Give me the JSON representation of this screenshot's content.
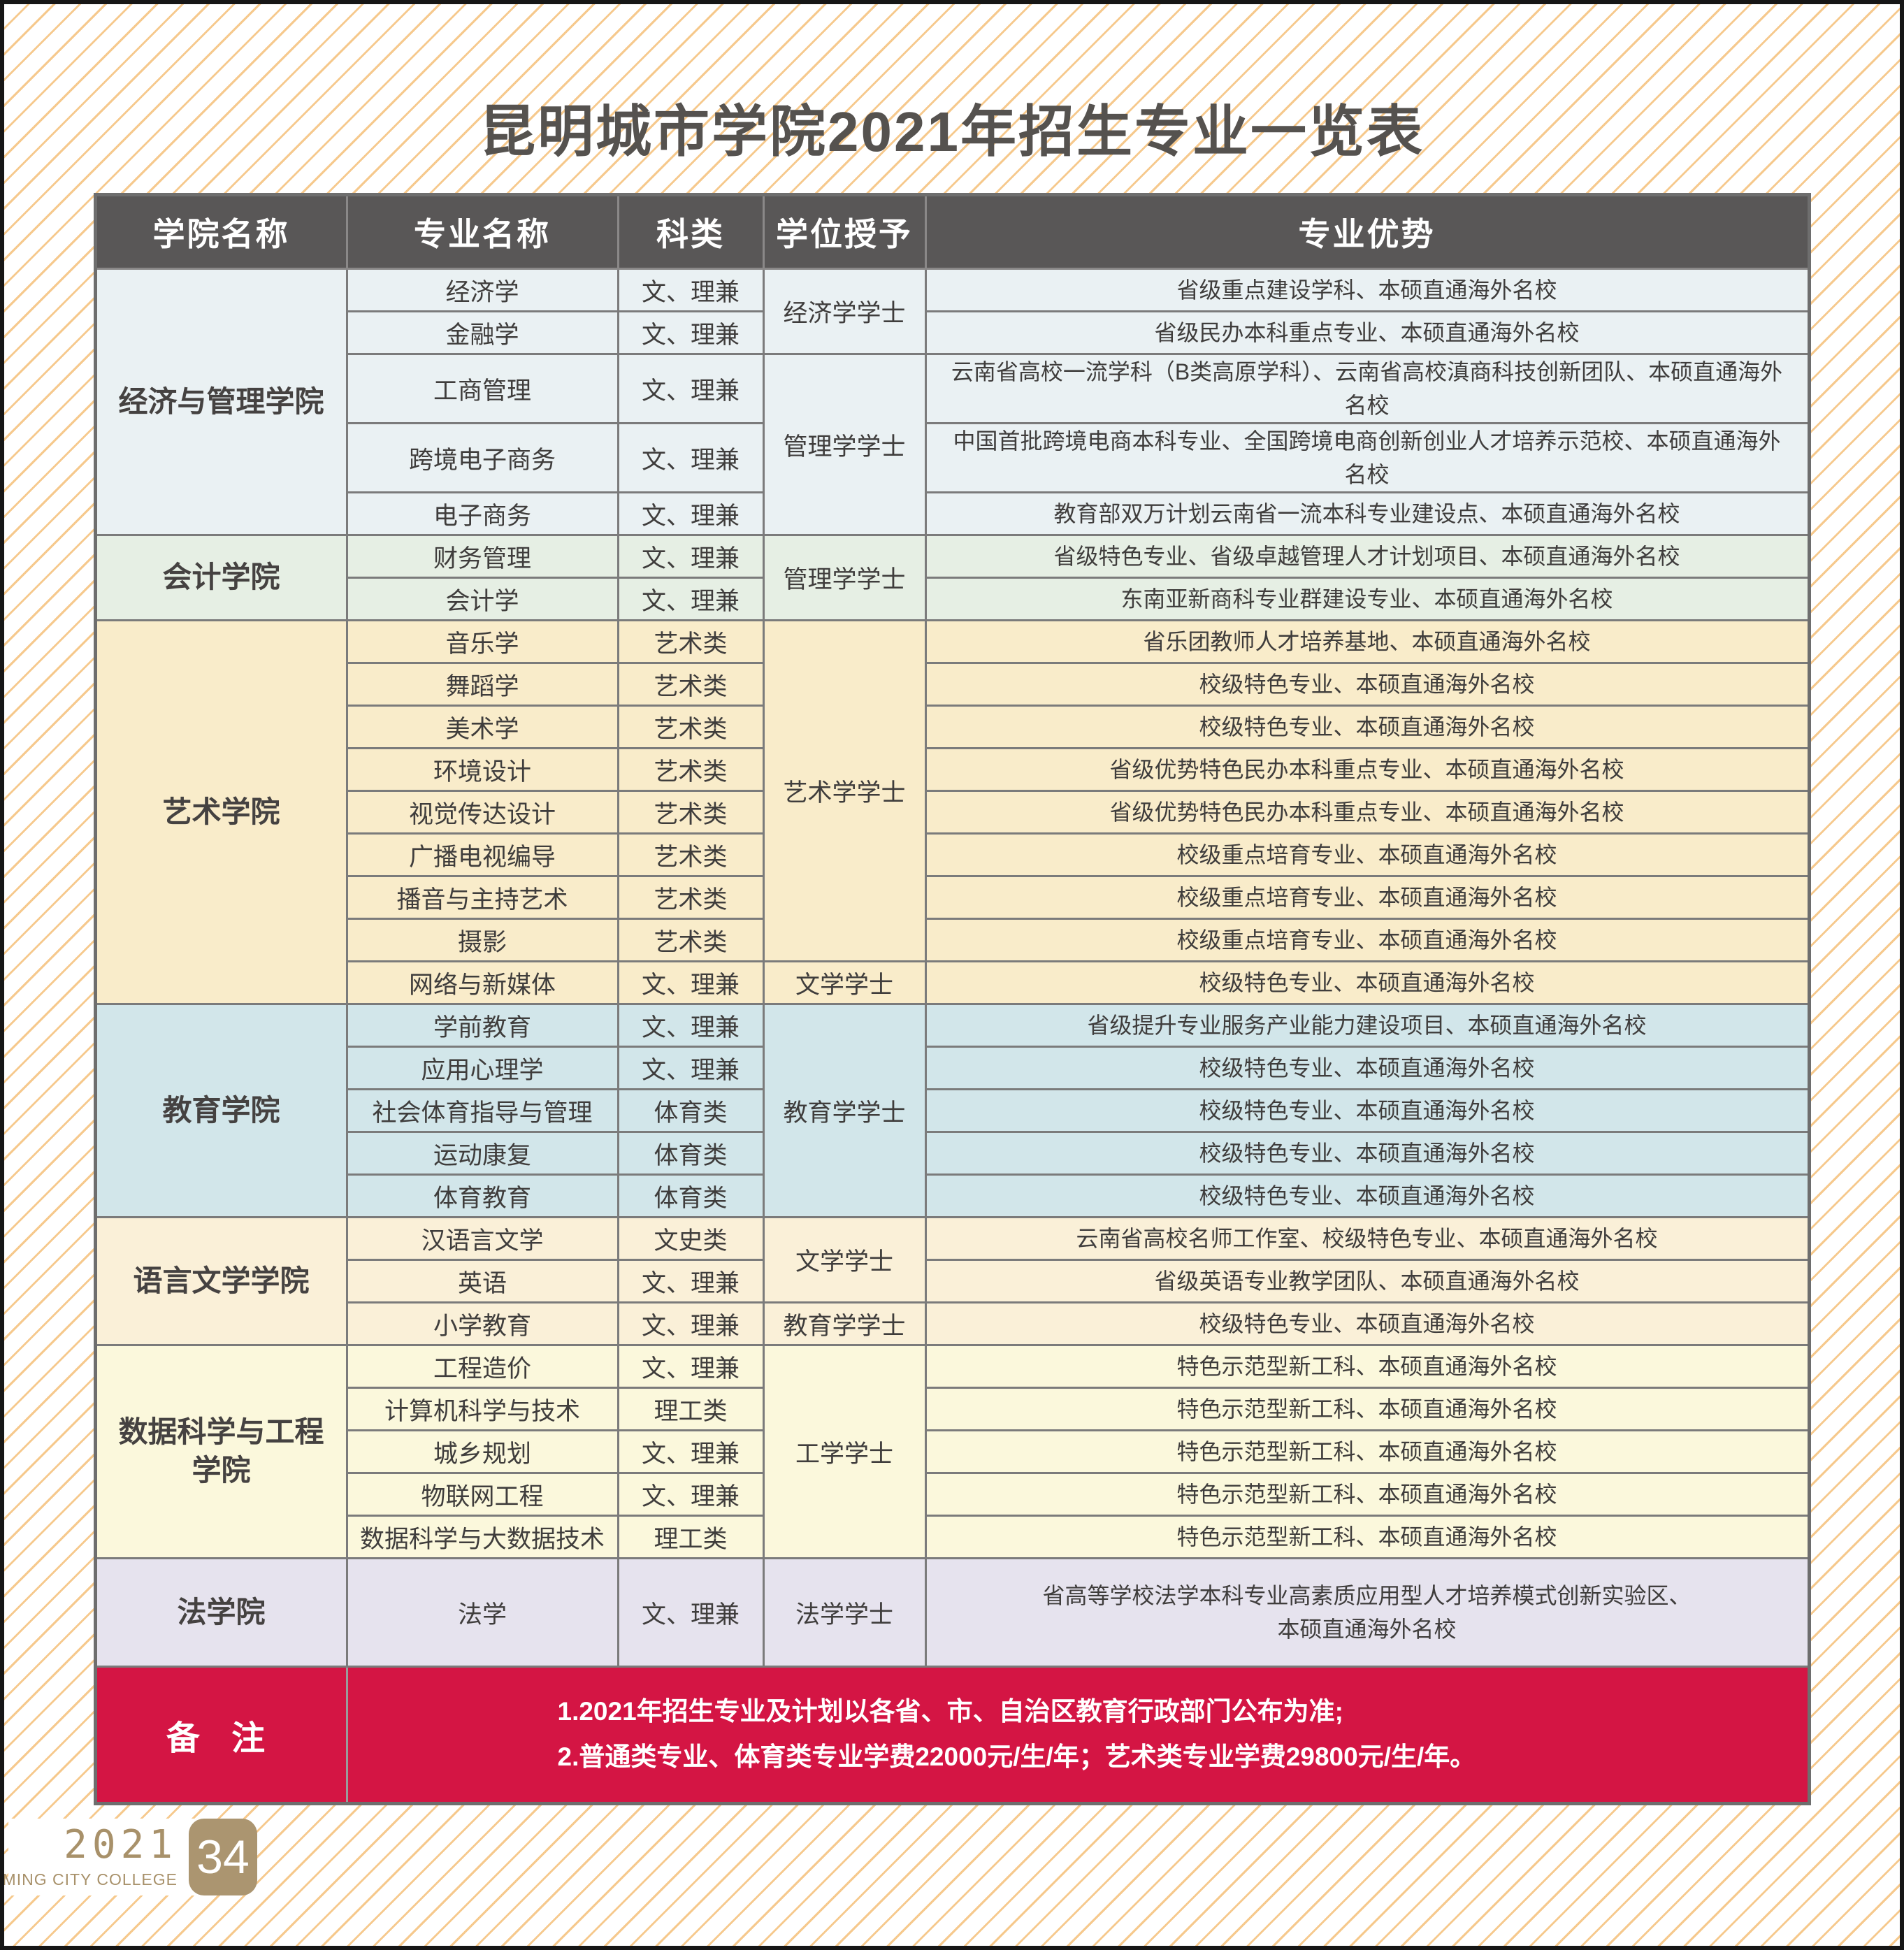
{
  "page": {
    "title": "昆明城市学院2021年招生专业一览表"
  },
  "table": {
    "headers": [
      "学院名称",
      "专业名称",
      "科类",
      "学位授予",
      "专业优势"
    ],
    "colors": {
      "header_bg": "#595757",
      "border": "#7b7b7b",
      "remark_bg": "#d41544",
      "stripe": "#f6c98d",
      "gold": "#ab9570",
      "text": "#3f3d3c"
    },
    "sections": [
      {
        "college": "经济与管理学院",
        "color": "#eaf1f3",
        "rows": [
          {
            "major": "经济学",
            "category": "文、理兼",
            "degree": "经济学学士",
            "degree_span": 2,
            "advantage": "省级重点建设学科、本硕直通海外名校"
          },
          {
            "major": "金融学",
            "category": "文、理兼",
            "advantage": "省级民办本科重点专业、本硕直通海外名校"
          },
          {
            "major": "工商管理",
            "category": "文、理兼",
            "degree": "管理学学士",
            "degree_span": 3,
            "advantage": "云南省高校一流学科（B类高原学科）、云南省高校滇商科技创新团队、本硕直通海外名校"
          },
          {
            "major": "跨境电子商务",
            "category": "文、理兼",
            "advantage": "中国首批跨境电商本科专业、全国跨境电商创新创业人才培养示范校、本硕直通海外名校"
          },
          {
            "major": "电子商务",
            "category": "文、理兼",
            "advantage": "教育部双万计划云南省一流本科专业建设点、本硕直通海外名校"
          }
        ]
      },
      {
        "college": "会计学院",
        "color": "#e6efe4",
        "rows": [
          {
            "major": "财务管理",
            "category": "文、理兼",
            "degree": "管理学学士",
            "degree_span": 2,
            "advantage": "省级特色专业、省级卓越管理人才计划项目、本硕直通海外名校"
          },
          {
            "major": "会计学",
            "category": "文、理兼",
            "advantage": "东南亚新商科专业群建设专业、本硕直通海外名校"
          }
        ]
      },
      {
        "college": "艺术学院",
        "color": "#f9ecca",
        "rows": [
          {
            "major": "音乐学",
            "category": "艺术类",
            "degree": "艺术学学士",
            "degree_span": 8,
            "advantage": "省乐团教师人才培养基地、本硕直通海外名校"
          },
          {
            "major": "舞蹈学",
            "category": "艺术类",
            "advantage": "校级特色专业、本硕直通海外名校"
          },
          {
            "major": "美术学",
            "category": "艺术类",
            "advantage": "校级特色专业、本硕直通海外名校"
          },
          {
            "major": "环境设计",
            "category": "艺术类",
            "advantage": "省级优势特色民办本科重点专业、本硕直通海外名校"
          },
          {
            "major": "视觉传达设计",
            "category": "艺术类",
            "advantage": "省级优势特色民办本科重点专业、本硕直通海外名校"
          },
          {
            "major": "广播电视编导",
            "category": "艺术类",
            "advantage": "校级重点培育专业、本硕直通海外名校"
          },
          {
            "major": "播音与主持艺术",
            "category": "艺术类",
            "advantage": "校级重点培育专业、本硕直通海外名校"
          },
          {
            "major": "摄影",
            "category": "艺术类",
            "advantage": "校级重点培育专业、本硕直通海外名校"
          },
          {
            "major": "网络与新媒体",
            "category": "文、理兼",
            "degree": "文学学士",
            "degree_span": 1,
            "advantage": "校级特色专业、本硕直通海外名校"
          }
        ]
      },
      {
        "college": "教育学院",
        "color": "#d2e6ea",
        "rows": [
          {
            "major": "学前教育",
            "category": "文、理兼",
            "degree": "教育学学士",
            "degree_span": 5,
            "advantage": "省级提升专业服务产业能力建设项目、本硕直通海外名校"
          },
          {
            "major": "应用心理学",
            "category": "文、理兼",
            "advantage": "校级特色专业、本硕直通海外名校"
          },
          {
            "major": "社会体育指导与管理",
            "category": "体育类",
            "advantage": "校级特色专业、本硕直通海外名校"
          },
          {
            "major": "运动康复",
            "category": "体育类",
            "advantage": "校级特色专业、本硕直通海外名校"
          },
          {
            "major": "体育教育",
            "category": "体育类",
            "advantage": "校级特色专业、本硕直通海外名校"
          }
        ]
      },
      {
        "college": "语言文学学院",
        "color": "#faf0d8",
        "rows": [
          {
            "major": "汉语言文学",
            "category": "文史类",
            "degree": "文学学士",
            "degree_span": 2,
            "advantage": "云南省高校名师工作室、校级特色专业、本硕直通海外名校"
          },
          {
            "major": "英语",
            "category": "文、理兼",
            "advantage": "省级英语专业教学团队、本硕直通海外名校"
          },
          {
            "major": "小学教育",
            "category": "文、理兼",
            "degree": "教育学学士",
            "degree_span": 1,
            "advantage": "校级特色专业、本硕直通海外名校"
          }
        ]
      },
      {
        "college": "数据科学与工程\n学院",
        "color": "#fbf8dc",
        "rows": [
          {
            "major": "工程造价",
            "category": "文、理兼",
            "degree": "工学学士",
            "degree_span": 5,
            "advantage": "特色示范型新工科、本硕直通海外名校"
          },
          {
            "major": "计算机科学与技术",
            "category": "理工类",
            "advantage": "特色示范型新工科、本硕直通海外名校"
          },
          {
            "major": "城乡规划",
            "category": "文、理兼",
            "advantage": "特色示范型新工科、本硕直通海外名校"
          },
          {
            "major": "物联网工程",
            "category": "文、理兼",
            "advantage": "特色示范型新工科、本硕直通海外名校"
          },
          {
            "major": "数据科学与大数据技术",
            "category": "理工类",
            "advantage": "特色示范型新工科、本硕直通海外名校"
          }
        ]
      },
      {
        "college": "法学院",
        "color": "#e6e3ee",
        "rows": [
          {
            "major": "法学",
            "category": "文、理兼",
            "degree": "法学学士",
            "degree_span": 1,
            "advantage": "省高等学校法学本科专业高素质应用型人才培养模式创新实验区、\n本硕直通海外名校"
          }
        ]
      }
    ],
    "remark": {
      "label": "备 注",
      "bg": "#d41544",
      "lines": [
        "1.2021年招生专业及计划以各省、市、自治区教育行政部门公布为准;",
        "2.普通类专业、体育类专业学费22000元/生/年；艺术类专业学费29800元/生/年。"
      ]
    }
  },
  "footer": {
    "year": "2021",
    "college_en": "KUNMING CITY COLLEGE",
    "page_number": "34"
  }
}
